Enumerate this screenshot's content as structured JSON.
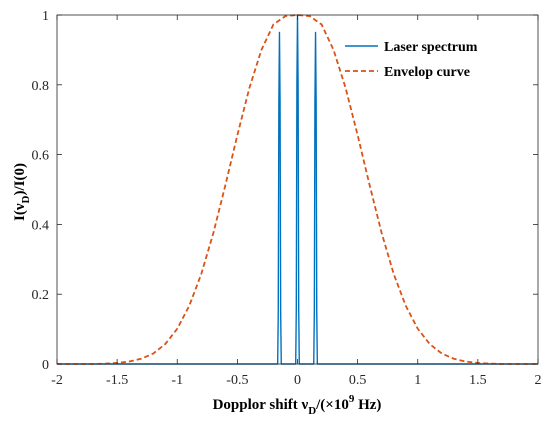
{
  "chart_data": {
    "type": "line",
    "xlabel": {
      "main": "Dopplor shift ν",
      "sub": "D",
      "mid": "/(×10",
      "sup": "9",
      "end": " Hz)"
    },
    "ylabel": {
      "main": "I(ν",
      "sub": "D",
      "end": ")/I(0)"
    },
    "xlim": [
      -2,
      2
    ],
    "ylim": [
      0,
      1
    ],
    "xticks": [
      -2,
      -1.5,
      -1,
      -0.5,
      0,
      0.5,
      1,
      1.5,
      2
    ],
    "xtick_labels": [
      "-2",
      "-1.5",
      "-1",
      "-0.5",
      "0",
      "0.5",
      "1",
      "1.5",
      "2"
    ],
    "yticks": [
      0,
      0.2,
      0.4,
      0.6,
      0.8,
      1
    ],
    "ytick_labels": [
      "0",
      "0.2",
      "0.4",
      "0.6",
      "0.8",
      "1"
    ],
    "legend_position": "top-right",
    "grid": false,
    "series": [
      {
        "name": "Laser spectrum",
        "style": "solid",
        "color": "#0072BD",
        "x": [
          -2,
          -0.165,
          -0.16,
          -0.155,
          -0.15,
          -0.145,
          -0.14,
          -0.135,
          -0.13,
          -0.015,
          -0.01,
          -0.005,
          0,
          0.005,
          0.01,
          0.015,
          0.13,
          0.135,
          0.14,
          0.145,
          0.15,
          0.155,
          0.16,
          0.165,
          2
        ],
        "y": [
          0,
          0,
          0.15,
          0.75,
          0.95,
          0.75,
          0.15,
          0,
          0,
          0,
          0.16,
          0.8,
          1.0,
          0.8,
          0.16,
          0,
          0,
          0,
          0.15,
          0.75,
          0.95,
          0.75,
          0.15,
          0,
          0
        ]
      },
      {
        "name": "Envelop curve",
        "style": "dashed",
        "color": "#D95319",
        "x": [
          -2,
          -1.9,
          -1.8,
          -1.7,
          -1.6,
          -1.5,
          -1.4,
          -1.3,
          -1.2,
          -1.1,
          -1.0,
          -0.9,
          -0.8,
          -0.7,
          -0.6,
          -0.5,
          -0.4,
          -0.3,
          -0.2,
          -0.1,
          0,
          0.1,
          0.2,
          0.3,
          0.4,
          0.5,
          0.6,
          0.7,
          0.8,
          0.9,
          1.0,
          1.1,
          1.2,
          1.3,
          1.4,
          1.5,
          1.6,
          1.7,
          1.8,
          1.9,
          2
        ],
        "y": [
          0.0,
          0.0,
          0.0,
          0.0,
          0.001,
          0.003,
          0.007,
          0.015,
          0.03,
          0.057,
          0.101,
          0.167,
          0.258,
          0.375,
          0.512,
          0.656,
          0.791,
          0.9,
          0.973,
          0.997,
          1.0,
          0.997,
          0.973,
          0.9,
          0.791,
          0.656,
          0.512,
          0.375,
          0.258,
          0.167,
          0.101,
          0.057,
          0.03,
          0.015,
          0.007,
          0.003,
          0.001,
          0.0,
          0.0,
          0.0,
          0.0
        ]
      }
    ]
  }
}
